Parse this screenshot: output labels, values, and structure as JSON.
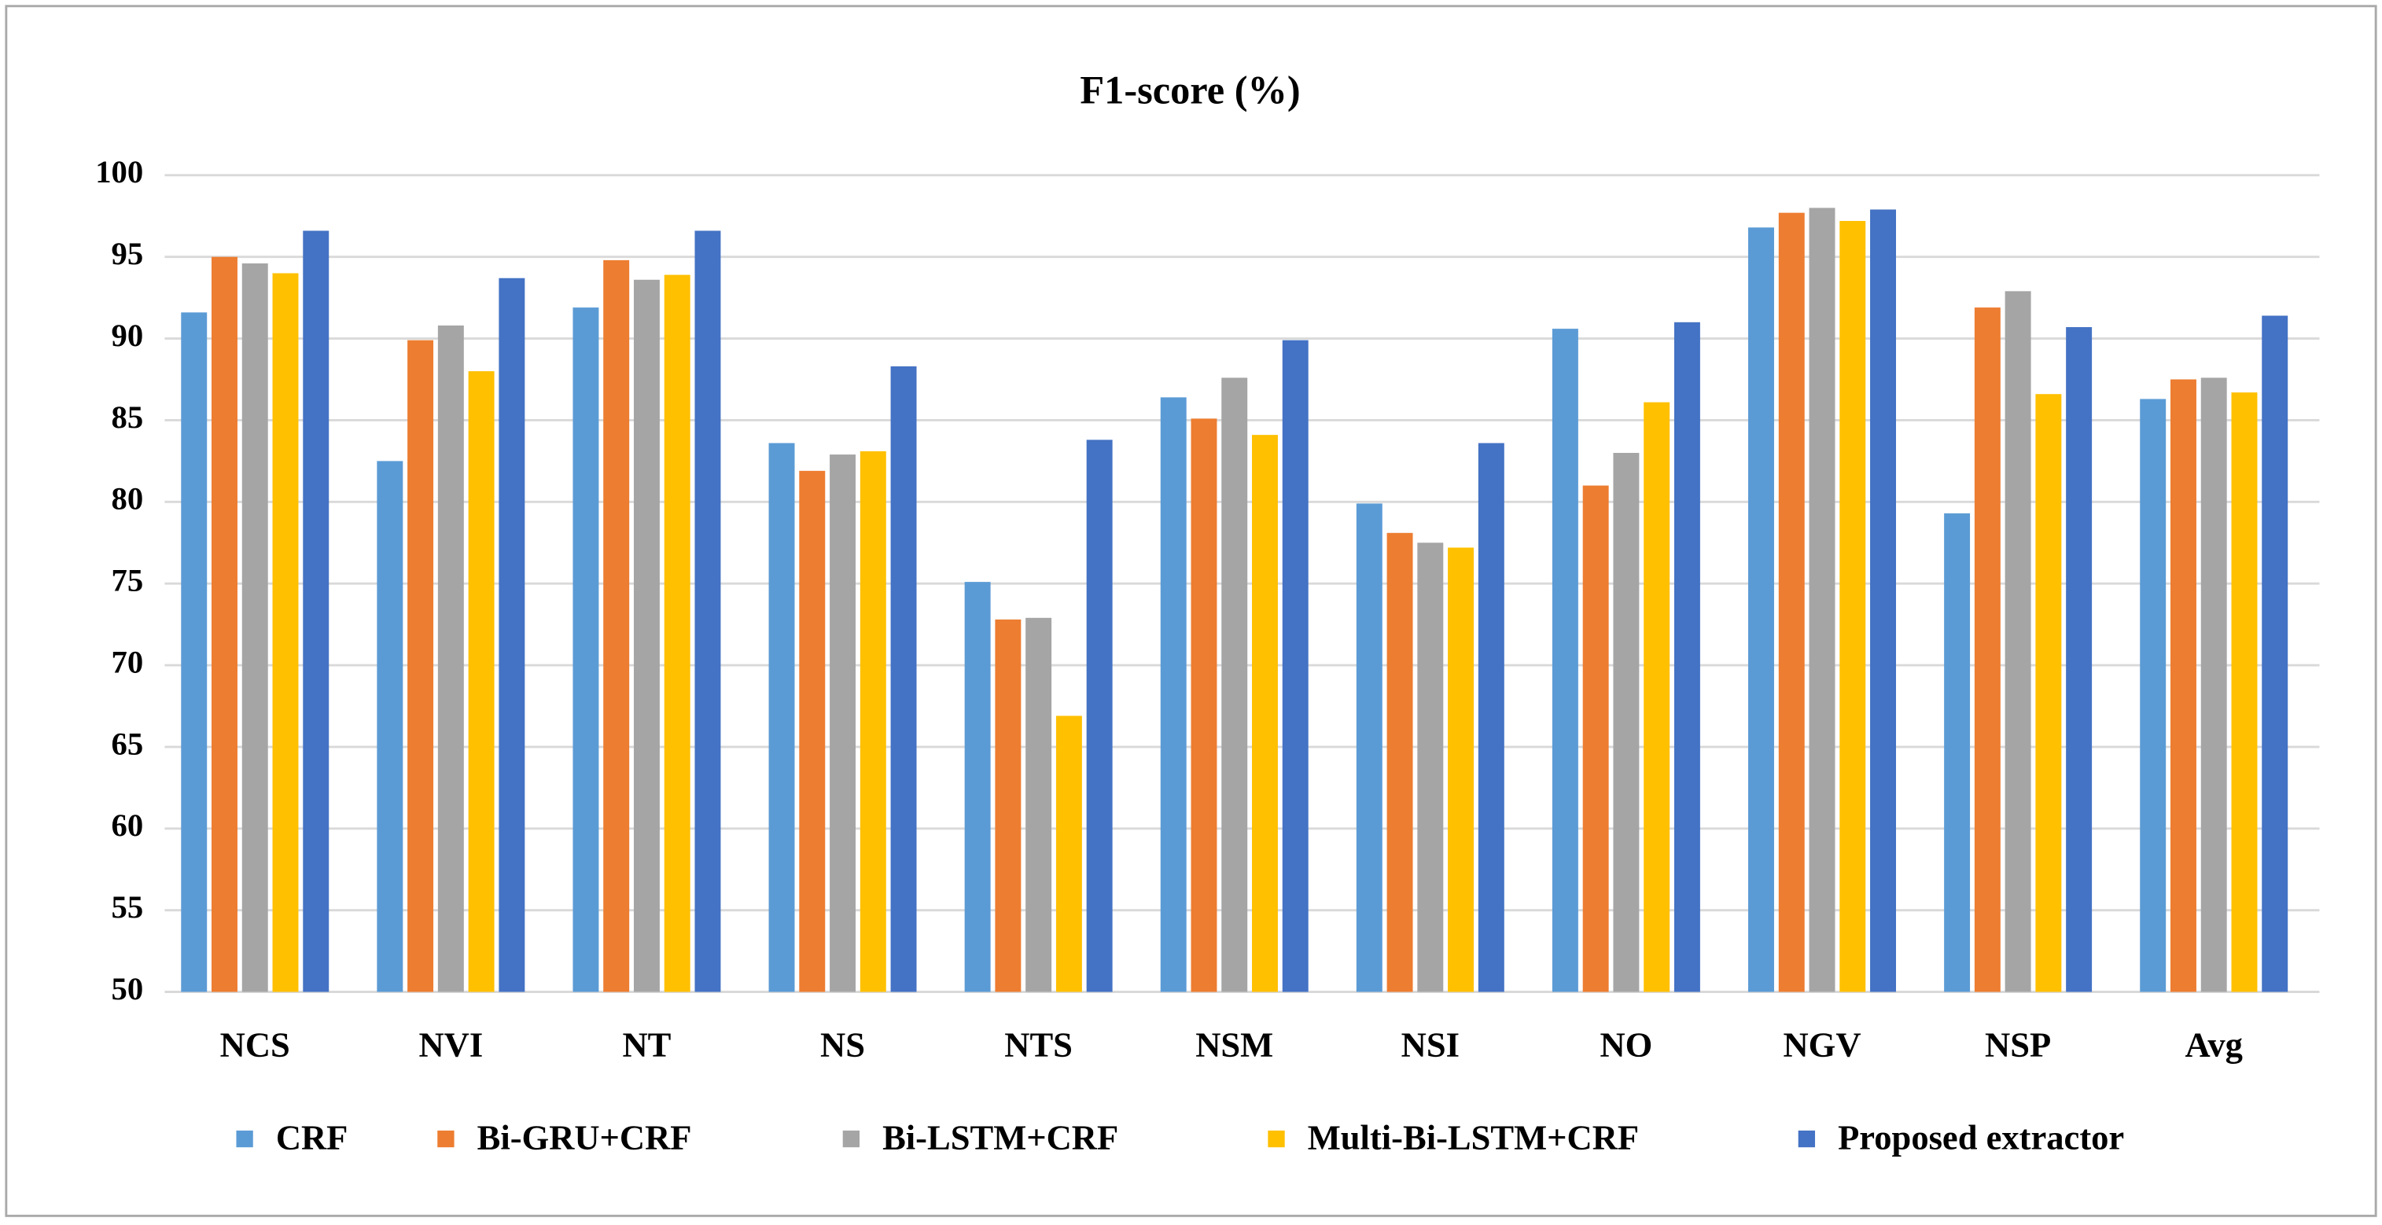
{
  "chart_data": {
    "type": "bar",
    "title": "F1-score (%)",
    "categories": [
      "NCS",
      "NVI",
      "NT",
      "NS",
      "NTS",
      "NSM",
      "NSI",
      "NO",
      "NGV",
      "NSP",
      "Avg"
    ],
    "series": [
      {
        "name": "CRF",
        "color": "#5b9bd5",
        "values": [
          91.6,
          82.5,
          91.9,
          83.6,
          75.1,
          86.4,
          79.9,
          90.6,
          96.8,
          79.3,
          86.3
        ]
      },
      {
        "name": "Bi-GRU+CRF",
        "color": "#ed7d31",
        "values": [
          95.0,
          89.9,
          94.8,
          81.9,
          72.8,
          85.1,
          78.1,
          81.0,
          97.7,
          91.9,
          87.5
        ]
      },
      {
        "name": "Bi-LSTM+CRF",
        "color": "#a5a5a5",
        "values": [
          94.6,
          90.8,
          93.6,
          82.9,
          72.9,
          87.6,
          77.5,
          83.0,
          98.0,
          92.9,
          87.6
        ]
      },
      {
        "name": "Multi-Bi-LSTM+CRF",
        "color": "#ffc000",
        "values": [
          94.0,
          88.0,
          93.9,
          83.1,
          66.9,
          84.1,
          77.2,
          86.1,
          97.2,
          86.6,
          86.7
        ]
      },
      {
        "name": "Proposed extractor",
        "color": "#4472c4",
        "values": [
          96.6,
          93.7,
          96.6,
          88.3,
          83.8,
          89.9,
          83.6,
          91.0,
          97.9,
          90.7,
          91.4
        ]
      }
    ],
    "ylim": [
      50,
      100
    ],
    "yticks": [
      50,
      55,
      60,
      65,
      70,
      75,
      80,
      85,
      90,
      95,
      100
    ],
    "grid": true,
    "legend": "bottom"
  }
}
